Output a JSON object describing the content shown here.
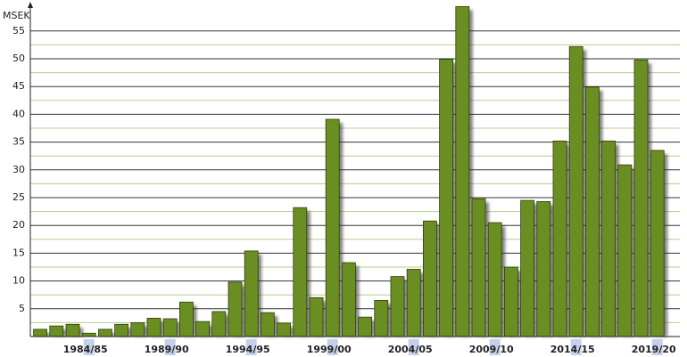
{
  "chart_data": {
    "type": "bar",
    "y_label": "MSEK",
    "categories": [
      null,
      null,
      null,
      "1984/85",
      null,
      null,
      null,
      null,
      "1989/90",
      null,
      null,
      null,
      null,
      "1994/95",
      null,
      null,
      null,
      null,
      "1999/00",
      null,
      null,
      null,
      null,
      "2004/05",
      null,
      null,
      null,
      null,
      "2009/10",
      null,
      null,
      null,
      null,
      "2014/15",
      null,
      null,
      null,
      null,
      "2019/20"
    ],
    "values": [
      1.3,
      1.9,
      2.2,
      0.6,
      1.3,
      2.2,
      2.5,
      3.3,
      3.2,
      6.2,
      2.7,
      4.5,
      9.8,
      15.4,
      4.3,
      2.4,
      23.2,
      7.0,
      39.1,
      13.3,
      3.5,
      6.5,
      10.8,
      12.1,
      20.8,
      49.9,
      59.4,
      24.8,
      20.5,
      12.5,
      24.5,
      24.3,
      35.2,
      52.2,
      44.9,
      35.2,
      30.9,
      49.8,
      33.5
    ],
    "color": "#6b8e23",
    "ylim": [
      0,
      60
    ],
    "yticks": [
      5,
      10,
      15,
      20,
      25,
      30,
      35,
      40,
      45,
      50,
      55
    ],
    "minor_yticks": [
      2.5,
      7.5,
      12.5,
      17.5,
      22.5,
      27.5,
      32.5,
      37.5,
      42.5,
      47.5,
      52.5
    ],
    "grid": true
  }
}
